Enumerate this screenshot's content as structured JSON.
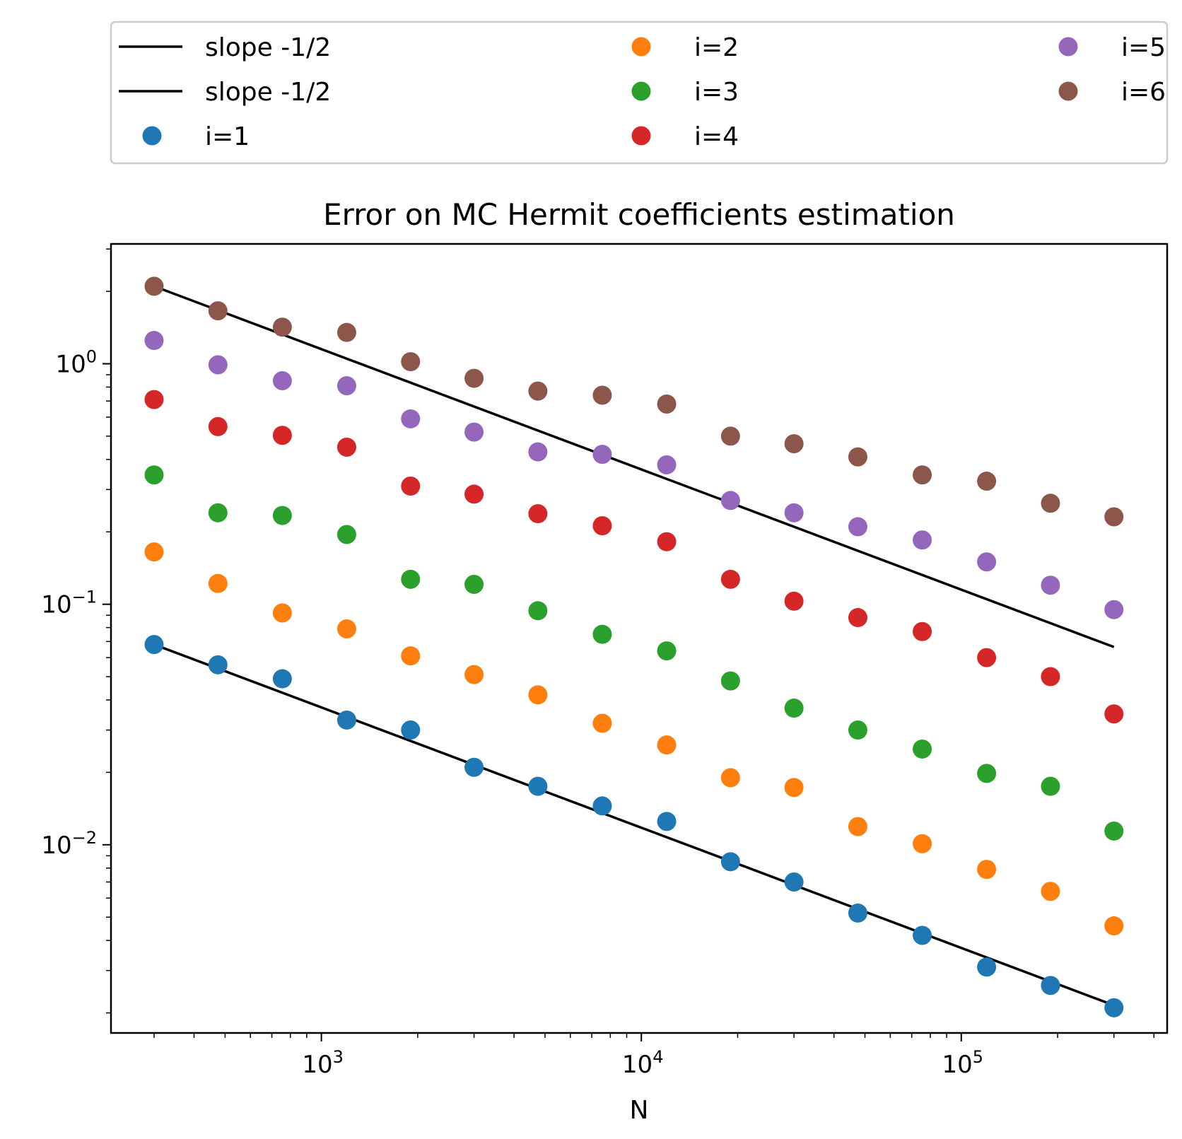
{
  "chart_data": {
    "type": "scatter",
    "title": "Error on MC Hermit coefficients estimation",
    "xlabel": "N",
    "ylabel": "",
    "xscale": "log",
    "yscale": "log",
    "xlim": [
      220,
      440000
    ],
    "ylim": [
      0.00165,
      3.15
    ],
    "grid": false,
    "legend_position": "above plot, 3 columns",
    "x_ticks": [
      {
        "value": 1000,
        "base": "10",
        "exp": "3"
      },
      {
        "value": 10000,
        "base": "10",
        "exp": "4"
      },
      {
        "value": 100000,
        "base": "10",
        "exp": "5"
      }
    ],
    "y_ticks": [
      {
        "value": 1,
        "base": "10",
        "exp": "0"
      },
      {
        "value": 0.1,
        "base": "10",
        "exp": "−1"
      },
      {
        "value": 0.01,
        "base": "10",
        "exp": "−2"
      }
    ],
    "x": [
      300,
      475,
      755,
      1200,
      1900,
      3000,
      4750,
      7550,
      12000,
      19000,
      30000,
      47500,
      75500,
      120000,
      190000,
      300000
    ],
    "series": [
      {
        "name": "i=1",
        "kind": "points",
        "color": "#1f77b4",
        "values": [
          0.068,
          0.056,
          0.049,
          0.033,
          0.03,
          0.021,
          0.0175,
          0.0145,
          0.0125,
          0.0085,
          0.007,
          0.0052,
          0.0042,
          0.0031,
          0.0026,
          0.0021
        ]
      },
      {
        "name": "i=2",
        "kind": "points",
        "color": "#ff7f0e",
        "values": [
          0.165,
          0.122,
          0.092,
          0.079,
          0.061,
          0.051,
          0.042,
          0.032,
          0.026,
          0.019,
          0.0173,
          0.0119,
          0.0101,
          0.0079,
          0.0064,
          0.0046
        ]
      },
      {
        "name": "i=3",
        "kind": "points",
        "color": "#2ca02c",
        "values": [
          0.345,
          0.24,
          0.234,
          0.195,
          0.127,
          0.121,
          0.094,
          0.075,
          0.064,
          0.048,
          0.037,
          0.03,
          0.025,
          0.0198,
          0.0175,
          0.0114
        ]
      },
      {
        "name": "i=4",
        "kind": "points",
        "color": "#d62728",
        "values": [
          0.71,
          0.548,
          0.504,
          0.45,
          0.31,
          0.287,
          0.238,
          0.212,
          0.182,
          0.127,
          0.103,
          0.088,
          0.077,
          0.06,
          0.05,
          0.035
        ]
      },
      {
        "name": "i=5",
        "kind": "points",
        "color": "#9467bd",
        "values": [
          1.25,
          0.99,
          0.85,
          0.81,
          0.59,
          0.52,
          0.43,
          0.42,
          0.38,
          0.27,
          0.24,
          0.21,
          0.185,
          0.15,
          0.12,
          0.095
        ]
      },
      {
        "name": "i=6",
        "kind": "points",
        "color": "#8c564b",
        "values": [
          2.1,
          1.66,
          1.42,
          1.35,
          1.02,
          0.87,
          0.77,
          0.74,
          0.68,
          0.5,
          0.465,
          0.41,
          0.345,
          0.325,
          0.263,
          0.231
        ]
      }
    ],
    "reference_lines": [
      {
        "name": "slope -1/2",
        "color": "#000000",
        "x": [
          300,
          300000
        ],
        "y": [
          2.1,
          0.0664
        ]
      },
      {
        "name": "slope -1/2",
        "color": "#000000",
        "x": [
          300,
          300000
        ],
        "y": [
          0.068,
          0.00215
        ]
      }
    ]
  },
  "legend": {
    "columns": [
      [
        {
          "label": "slope -1/2",
          "marker": "line",
          "color": "#000000"
        },
        {
          "label": "slope -1/2",
          "marker": "line",
          "color": "#000000"
        },
        {
          "label": "i=1",
          "marker": "dot",
          "color": "#1f77b4"
        }
      ],
      [
        {
          "label": "i=2",
          "marker": "dot",
          "color": "#ff7f0e"
        },
        {
          "label": "i=3",
          "marker": "dot",
          "color": "#2ca02c"
        },
        {
          "label": "i=4",
          "marker": "dot",
          "color": "#d62728"
        }
      ],
      [
        {
          "label": "i=5",
          "marker": "dot",
          "color": "#9467bd"
        },
        {
          "label": "i=6",
          "marker": "dot",
          "color": "#8c564b"
        }
      ]
    ]
  }
}
